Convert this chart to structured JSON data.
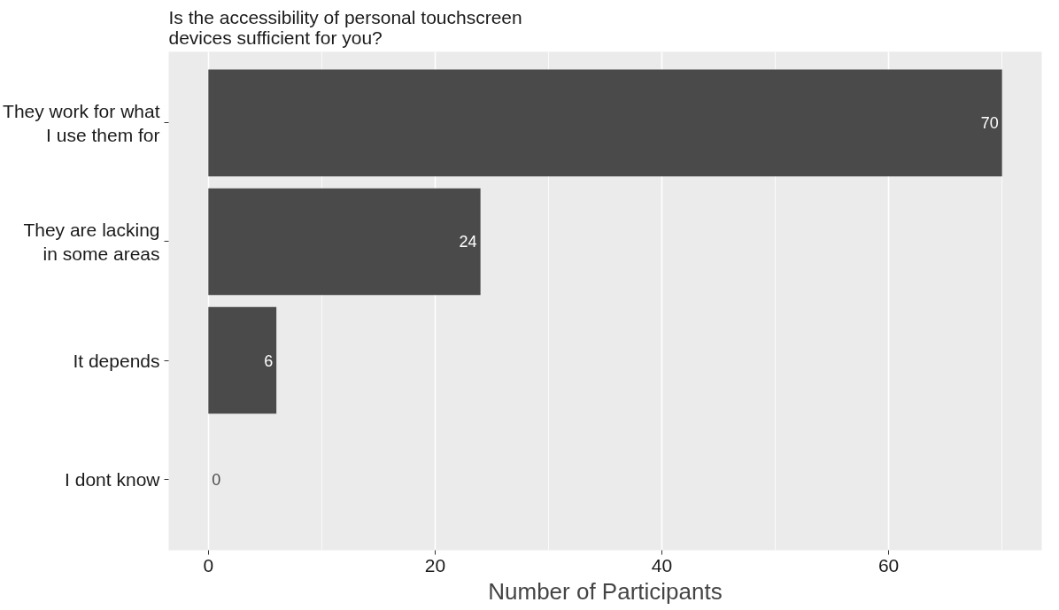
{
  "chart_data": {
    "type": "bar",
    "orientation": "horizontal",
    "title": "Is the accessibility of personal touchscreen\ndevices sufficient for you?",
    "xlabel": "Number of Participants",
    "categories": [
      "They work for what\nI use them for",
      "They are lacking\nin some areas",
      "It depends",
      "I dont know"
    ],
    "values": [
      70,
      24,
      6,
      0
    ],
    "color": "#4a4a4a",
    "xlim": [
      -3.5,
      73.5
    ],
    "xticks": [
      0,
      20,
      40,
      60
    ],
    "grid": "x",
    "data_labels": true
  }
}
